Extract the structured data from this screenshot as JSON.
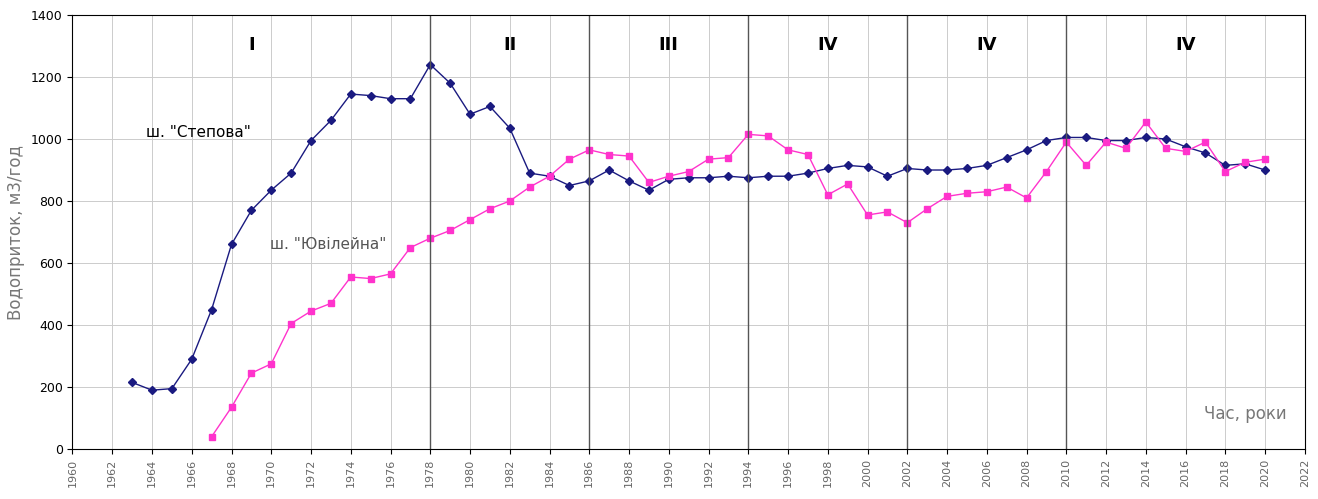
{
  "chart_data": {
    "type": "line",
    "y_label": "Водоприток, м3/год",
    "x_label": "Час, роки",
    "xlim": [
      1960,
      2022
    ],
    "xticks": [
      1960,
      1962,
      1964,
      1966,
      1968,
      1970,
      1972,
      1974,
      1976,
      1978,
      1980,
      1982,
      1984,
      1986,
      1988,
      1990,
      1992,
      1994,
      1996,
      1998,
      2000,
      2002,
      2004,
      2006,
      2008,
      2010,
      2012,
      2014,
      2016,
      2018,
      2020,
      2022
    ],
    "ylim": [
      0,
      1400
    ],
    "yticks": [
      0,
      200,
      400,
      600,
      800,
      1000,
      1200,
      1400
    ],
    "grid": true,
    "periods": [
      {
        "label": "I",
        "start": 1960,
        "end": 1978
      },
      {
        "label": "II",
        "start": 1978,
        "end": 1986
      },
      {
        "label": "III",
        "start": 1986,
        "end": 1994
      },
      {
        "label": "IV",
        "start": 1994,
        "end": 2002
      },
      {
        "label": "IV",
        "start": 2002,
        "end": 2010
      },
      {
        "label": "IV",
        "start": 2010,
        "end": 2022
      }
    ],
    "series": [
      {
        "name": "ш. \"Степова\"",
        "color": "#1a1a80",
        "marker": "diamond",
        "line_style": "solid",
        "x": [
          1963,
          1964,
          1965,
          1966,
          1967,
          1968,
          1969,
          1970,
          1971,
          1972,
          1973,
          1974,
          1975,
          1976,
          1977,
          1978,
          1979,
          1980,
          1981,
          1982,
          1983,
          1984,
          1985,
          1986,
          1987,
          1988,
          1989,
          1990,
          1991,
          1992,
          1993,
          1994,
          1995,
          1996,
          1997,
          1998,
          1999,
          2000,
          2001,
          2002,
          2003,
          2004,
          2005,
          2006,
          2007,
          2008,
          2009,
          2010,
          2011,
          2012,
          2013,
          2014,
          2015,
          2016,
          2017,
          2018,
          2019,
          2020
        ],
        "values": [
          215,
          190,
          195,
          290,
          450,
          660,
          770,
          835,
          890,
          995,
          1060,
          1145,
          1140,
          1130,
          1130,
          1240,
          1180,
          1080,
          1105,
          1035,
          890,
          880,
          850,
          865,
          900,
          865,
          835,
          870,
          875,
          875,
          880,
          875,
          880,
          880,
          890,
          905,
          915,
          910,
          880,
          905,
          900,
          900,
          905,
          915,
          940,
          965,
          995,
          1005,
          1005,
          995,
          995,
          1005,
          1000,
          975,
          955,
          915,
          920,
          900
        ]
      },
      {
        "name": "ш. \"Ювілейна\"",
        "color": "#ff33cc",
        "marker": "square",
        "line_style": "solid",
        "x": [
          1967,
          1968,
          1969,
          1970,
          1971,
          1972,
          1973,
          1974,
          1975,
          1976,
          1977,
          1978,
          1979,
          1980,
          1981,
          1982,
          1983,
          1984,
          1985,
          1986,
          1987,
          1988,
          1989,
          1990,
          1991,
          1992,
          1993,
          1994,
          1995,
          1996,
          1997,
          1998,
          1999,
          2000,
          2001,
          2002,
          2003,
          2004,
          2005,
          2006,
          2007,
          2008,
          2009,
          2010,
          2011,
          2012,
          2013,
          2014,
          2015,
          2016,
          2017,
          2018,
          2019,
          2020
        ],
        "values": [
          40,
          135,
          245,
          275,
          405,
          445,
          470,
          555,
          550,
          565,
          650,
          680,
          705,
          740,
          775,
          800,
          845,
          880,
          935,
          965,
          950,
          945,
          860,
          880,
          895,
          935,
          940,
          1015,
          1010,
          965,
          950,
          820,
          855,
          755,
          765,
          730,
          775,
          815,
          825,
          830,
          845,
          810,
          895,
          990,
          915,
          990,
          970,
          1055,
          970,
          960,
          990,
          895,
          925,
          935
        ]
      }
    ]
  }
}
